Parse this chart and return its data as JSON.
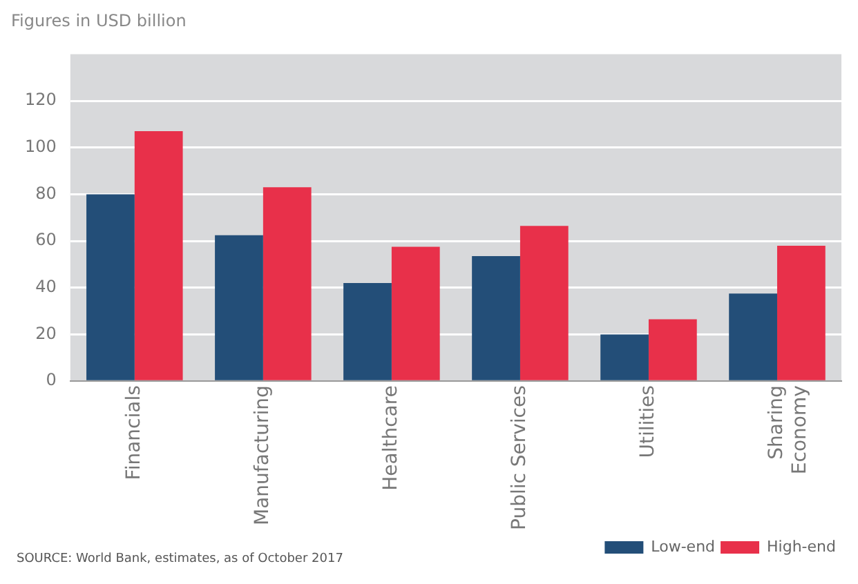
{
  "chart_data": {
    "type": "bar",
    "subtitle": "Figures in USD billion",
    "categories": [
      "Financials",
      "Manufacturing",
      "Healthcare",
      "Public Services",
      "Utilities",
      "Sharing\nEconomy"
    ],
    "series": [
      {
        "name": "Low-end",
        "color": "#234e78",
        "values": [
          80,
          62.5,
          42,
          53.5,
          20,
          37.5
        ]
      },
      {
        "name": "High-end",
        "color": "#e8304a",
        "values": [
          107,
          83,
          57.5,
          66.5,
          26.5,
          58
        ]
      }
    ],
    "ylim": [
      0,
      140
    ],
    "yticks": [
      0,
      20,
      40,
      60,
      80,
      100,
      120
    ],
    "grid": "y",
    "legend": "bottom right",
    "annotations": [
      "SOURCE: World Bank, estimates, as of October 2017"
    ]
  }
}
